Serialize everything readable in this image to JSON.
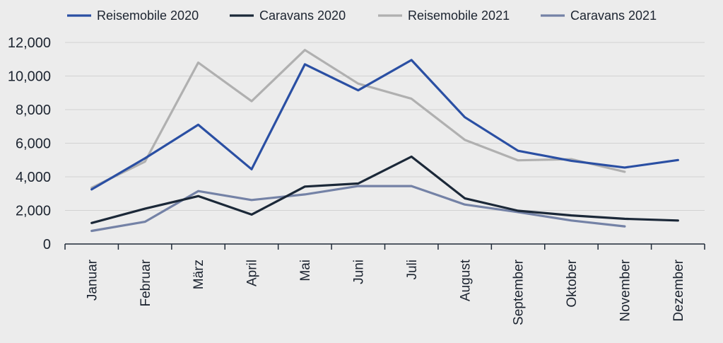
{
  "chart_data": {
    "type": "line",
    "title": "",
    "xlabel": "",
    "ylabel": "",
    "ylim": [
      0,
      12000
    ],
    "yticks": [
      0,
      2000,
      4000,
      6000,
      8000,
      10000,
      12000
    ],
    "ytick_labels": [
      "0",
      "2,000",
      "4,000",
      "6,000",
      "8,000",
      "10,000",
      "12,000"
    ],
    "grid": true,
    "legend_position": "top",
    "categories": [
      "Januar",
      "Februar",
      "März",
      "April",
      "Mai",
      "Juni",
      "Juli",
      "August",
      "September",
      "Oktober",
      "November",
      "Dezember"
    ],
    "series": [
      {
        "name": "Reisemobile 2020",
        "color": "#2a4fa3",
        "values": [
          3250,
          5100,
          7100,
          4450,
          10700,
          9150,
          10950,
          7550,
          5550,
          4950,
          4550,
          5000
        ]
      },
      {
        "name": "Caravans 2020",
        "color": "#1b2838",
        "values": [
          1250,
          2100,
          2850,
          1750,
          3420,
          3600,
          5200,
          2720,
          1980,
          1700,
          1500,
          1400
        ]
      },
      {
        "name": "Reisemobile 2021",
        "color": "#b0b0b0",
        "values": [
          3350,
          4900,
          10800,
          8500,
          11550,
          9550,
          8650,
          6200,
          4980,
          5050,
          4300,
          null
        ]
      },
      {
        "name": "Caravans 2021",
        "color": "#7482a6",
        "values": [
          780,
          1320,
          3150,
          2620,
          2950,
          3450,
          3450,
          2350,
          1900,
          1400,
          1050,
          null
        ]
      }
    ]
  }
}
